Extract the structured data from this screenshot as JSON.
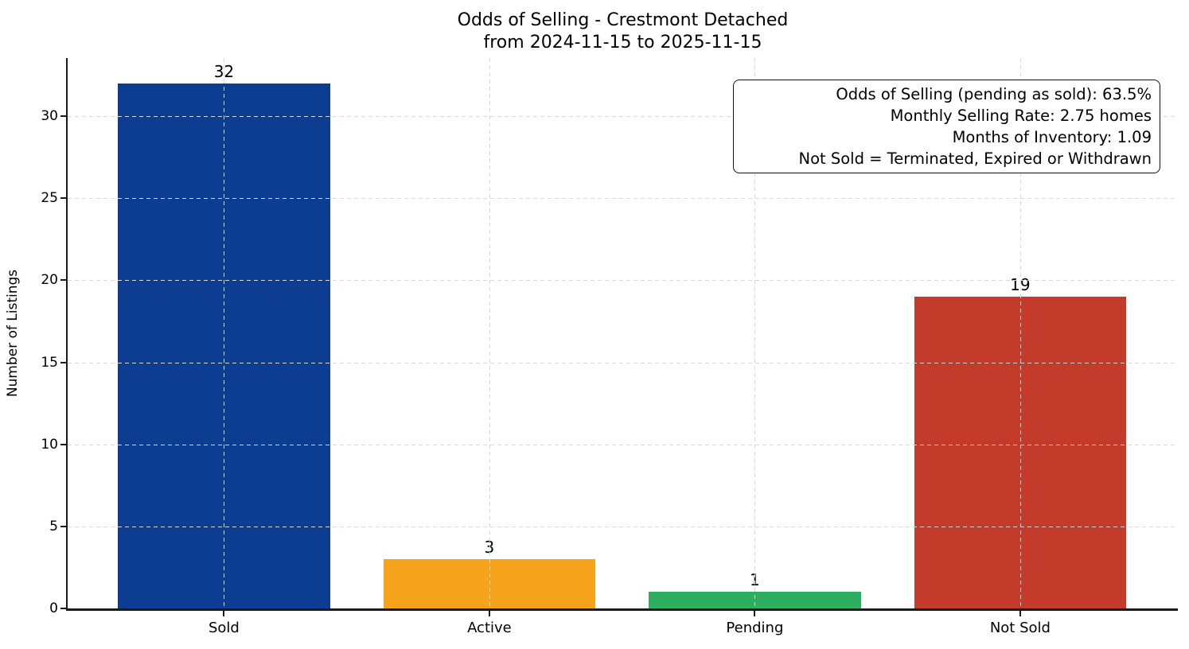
{
  "chart_data": {
    "type": "bar",
    "title": "Odds of Selling - Crestmont Detached",
    "subtitle": "from 2024-11-15 to 2025-11-15",
    "categories": [
      "Sold",
      "Active",
      "Pending",
      "Not Sold"
    ],
    "values": [
      32,
      3,
      1,
      19
    ],
    "bar_colors": [
      "#0d3d91",
      "#f5a31a",
      "#2eae60",
      "#c43b2c"
    ],
    "bar_value_labels": [
      "32",
      "3",
      "1",
      "19"
    ],
    "xlabel": "",
    "ylabel": "Number of Listings",
    "yticks": [
      0,
      5,
      10,
      15,
      20,
      25,
      30
    ],
    "ylim": [
      0,
      33.55
    ],
    "grid": "dashed light-gray horizontal and vertical gridlines, drawn over bars",
    "legend_position": "none",
    "annotation_lines": [
      "Odds of Selling (pending as sold): 63.5%",
      "Monthly Selling Rate: 2.75 homes",
      "Months of Inventory: 1.09",
      "Not Sold = Terminated, Expired or Withdrawn"
    ]
  },
  "colors": {
    "background": "#ffffff",
    "axis": "#1a1a1a",
    "grid": "#d9d9d9",
    "text": "#000000",
    "annotation_border": "#111111"
  }
}
